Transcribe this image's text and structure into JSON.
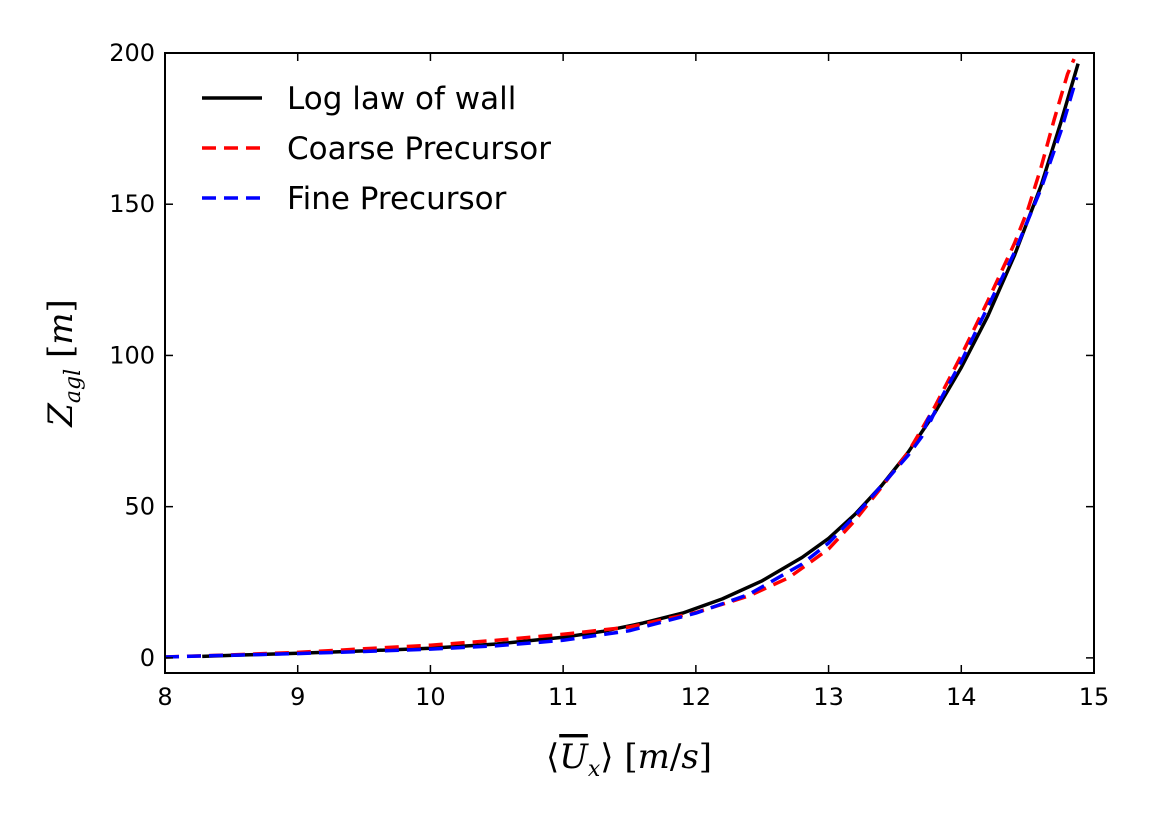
{
  "chart_data": {
    "type": "line",
    "xlabel": "⟨U̅x⟩ [m/s]",
    "ylabel": "Zagl [m]",
    "xlim": [
      8,
      15
    ],
    "ylim": [
      -5,
      200
    ],
    "x_ticks": [
      "8",
      "9",
      "10",
      "11",
      "12",
      "13",
      "14",
      "15"
    ],
    "y_ticks": [
      "0",
      "50",
      "100",
      "150",
      "200"
    ],
    "grid": false,
    "legend": "top-left",
    "series": [
      {
        "name": "Log law of wall",
        "color": "#000000",
        "style": "solid",
        "points": [
          [
            8.28,
            0.5
          ],
          [
            8.6,
            1.0
          ],
          [
            9.0,
            1.5
          ],
          [
            9.5,
            2.3
          ],
          [
            10.0,
            3.2
          ],
          [
            10.5,
            4.6
          ],
          [
            11.0,
            6.8
          ],
          [
            11.3,
            8.8
          ],
          [
            11.6,
            11.5
          ],
          [
            11.9,
            14.8
          ],
          [
            12.2,
            19.5
          ],
          [
            12.5,
            25.5
          ],
          [
            12.8,
            33.2
          ],
          [
            13.0,
            39.5
          ],
          [
            13.2,
            47.5
          ],
          [
            13.4,
            57.0
          ],
          [
            13.6,
            68.0
          ],
          [
            13.8,
            81.0
          ],
          [
            14.0,
            96.0
          ],
          [
            14.2,
            113.0
          ],
          [
            14.4,
            133.0
          ],
          [
            14.6,
            156.0
          ],
          [
            14.75,
            177.0
          ],
          [
            14.88,
            196.5
          ]
        ]
      },
      {
        "name": "Coarse Precursor",
        "color": "#ff0000",
        "style": "dashed",
        "points": [
          [
            8.0,
            0.3
          ],
          [
            8.5,
            1.0
          ],
          [
            9.0,
            1.8
          ],
          [
            9.5,
            3.0
          ],
          [
            10.0,
            4.2
          ],
          [
            10.5,
            5.8
          ],
          [
            11.0,
            7.8
          ],
          [
            11.5,
            10.2
          ],
          [
            12.0,
            15.0
          ],
          [
            12.4,
            20.5
          ],
          [
            12.7,
            26.5
          ],
          [
            13.0,
            36.0
          ],
          [
            13.2,
            45.5
          ],
          [
            13.4,
            56.5
          ],
          [
            13.6,
            68.0
          ],
          [
            13.8,
            83.0
          ],
          [
            14.0,
            100.0
          ],
          [
            14.2,
            118.0
          ],
          [
            14.4,
            137.0
          ],
          [
            14.5,
            148.0
          ],
          [
            14.6,
            162.0
          ],
          [
            14.7,
            178.0
          ],
          [
            14.8,
            193.0
          ],
          [
            14.85,
            198.0
          ]
        ]
      },
      {
        "name": "Fine Precursor",
        "color": "#0000ff",
        "style": "dashed",
        "points": [
          [
            8.0,
            0.3
          ],
          [
            8.5,
            0.9
          ],
          [
            9.0,
            1.4
          ],
          [
            9.5,
            2.1
          ],
          [
            10.0,
            2.9
          ],
          [
            10.5,
            4.0
          ],
          [
            11.0,
            5.8
          ],
          [
            11.5,
            9.0
          ],
          [
            12.0,
            14.8
          ],
          [
            12.4,
            21.0
          ],
          [
            12.8,
            31.0
          ],
          [
            13.0,
            38.0
          ],
          [
            13.2,
            47.0
          ],
          [
            13.4,
            57.0
          ],
          [
            13.6,
            67.0
          ],
          [
            13.7,
            73.0
          ],
          [
            13.75,
            79.0
          ],
          [
            13.78,
            81.0
          ],
          [
            13.77,
            78.5
          ],
          [
            13.85,
            86.0
          ],
          [
            14.0,
            98.0
          ],
          [
            14.2,
            116.0
          ],
          [
            14.4,
            134.0
          ],
          [
            14.6,
            155.0
          ],
          [
            14.75,
            174.0
          ],
          [
            14.87,
            192.0
          ]
        ]
      }
    ]
  }
}
